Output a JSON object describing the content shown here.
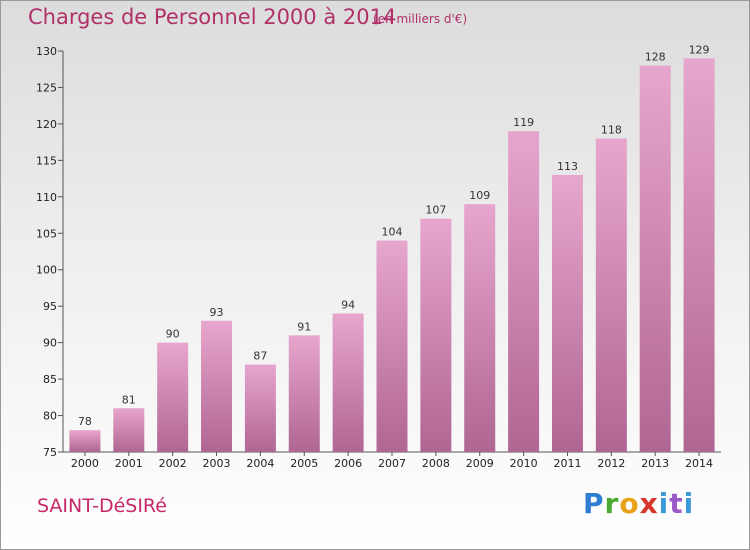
{
  "header": {
    "title": "Charges de Personnel 2000 à 2014",
    "subtitle": "(en milliers d'€)"
  },
  "footer": {
    "commune": "SAINT-DéSIRé",
    "logo": [
      "P",
      "r",
      "o",
      "x",
      "i",
      "t",
      "i"
    ]
  },
  "colors": {
    "title": "#b03068",
    "bar_top": "#e7a6cd",
    "bar_bottom": "#b06692",
    "logo": [
      "#2e7dd1",
      "#4aa92f",
      "#e8a21a",
      "#d8352a",
      "#3c9ad8",
      "#9a58c8",
      "#3c9ad8"
    ]
  },
  "chart_data": {
    "type": "bar",
    "title": "Charges de Personnel 2000 à 2014",
    "subtitle": "(en milliers d'€)",
    "categories": [
      "2000",
      "2001",
      "2002",
      "2003",
      "2004",
      "2005",
      "2006",
      "2007",
      "2008",
      "2009",
      "2010",
      "2011",
      "2012",
      "2013",
      "2014"
    ],
    "values": [
      78,
      81,
      90,
      93,
      87,
      91,
      94,
      104,
      107,
      109,
      119,
      113,
      118,
      128,
      129
    ],
    "ylim": [
      75,
      130
    ],
    "yticks": [
      75,
      80,
      85,
      90,
      95,
      100,
      105,
      110,
      115,
      120,
      125,
      130
    ],
    "grid": false,
    "legend": "none"
  }
}
